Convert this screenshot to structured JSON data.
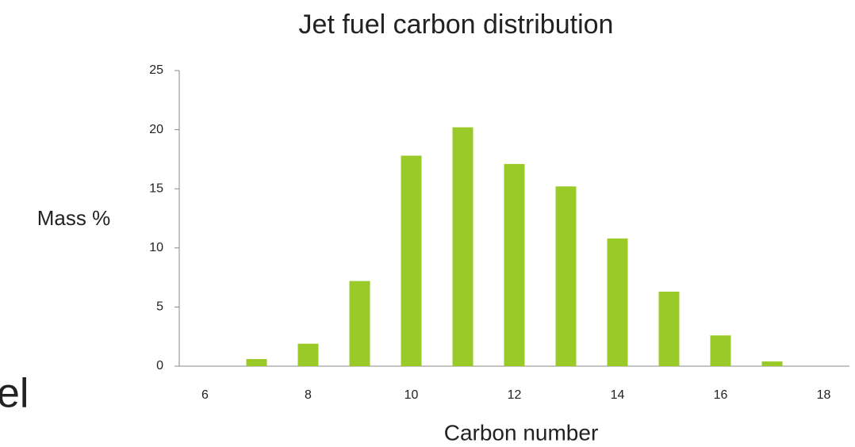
{
  "chart_data": {
    "type": "bar",
    "title": "Jet fuel carbon distribution",
    "x_label": "Carbon number",
    "y_label": "Mass %",
    "categories": [
      "6",
      null,
      "8",
      null,
      "10",
      null,
      "12",
      null,
      "14",
      null,
      "16",
      null,
      "18"
    ],
    "values": [
      null,
      0.6,
      1.9,
      7.2,
      17.8,
      20.2,
      17.1,
      15.2,
      10.8,
      6.3,
      2.6,
      0.4,
      null
    ],
    "color": "#9aca27",
    "ylim": [
      0,
      25
    ],
    "yticks": [
      0,
      5,
      10,
      15,
      20,
      25
    ],
    "grid": false
  },
  "side_text": "el"
}
